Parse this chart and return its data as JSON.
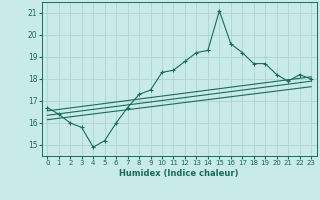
{
  "xlabel": "Humidex (Indice chaleur)",
  "background_color": "#c8eae8",
  "grid_color": "#a8d0cc",
  "line_color": "#1a6b5a",
  "xlim": [
    -0.5,
    23.5
  ],
  "ylim": [
    14.5,
    21.5
  ],
  "yticks": [
    15,
    16,
    17,
    18,
    19,
    20,
    21
  ],
  "xticks": [
    0,
    1,
    2,
    3,
    4,
    5,
    6,
    7,
    8,
    9,
    10,
    11,
    12,
    13,
    14,
    15,
    16,
    17,
    18,
    19,
    20,
    21,
    22,
    23
  ],
  "xtick_labels": [
    "0",
    "1",
    "2",
    "3",
    "4",
    "5",
    "6",
    "7",
    "8",
    "9",
    "10",
    "11",
    "12",
    "13",
    "14",
    "15",
    "16",
    "17",
    "18",
    "19",
    "20",
    "21",
    "22",
    "23"
  ],
  "main_line": [
    16.7,
    16.4,
    16.0,
    15.8,
    14.9,
    15.2,
    16.0,
    16.7,
    17.3,
    17.5,
    18.3,
    18.4,
    18.8,
    19.2,
    19.3,
    21.1,
    19.6,
    19.2,
    18.7,
    18.7,
    18.2,
    17.9,
    18.2,
    18.0
  ],
  "reg_lines": [
    [
      16.55,
      18.1
    ],
    [
      16.35,
      17.9
    ],
    [
      16.15,
      17.65
    ]
  ]
}
